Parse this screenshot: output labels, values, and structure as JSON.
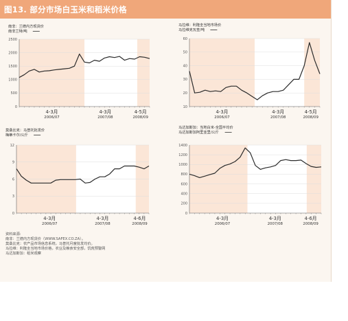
{
  "header": {
    "title": "图13. 部分市场白玉米和稻米价格"
  },
  "sources": {
    "title": "资料来源:",
    "lines": [
      "南非：兰德内方现货价（WWW.SAFEX.CO.ZA）。",
      "莫桑比克：农产品市场信息系统，马普托月度批发均价。",
      "马拉维：利隆圭当地市场价格，农业及粮食安全部，饥荒预警网",
      "马达加斯加：稻米观察"
    ]
  },
  "colors": {
    "line": "#2b2b2b",
    "shade": "#fbe6d7",
    "axis": "#666666",
    "grid": "#dddddd",
    "legend": "#333333"
  },
  "chart_data": [
    {
      "type": "line",
      "title": "南非：兰德内方现货价",
      "ylabel": "南非兰特/吨",
      "ylim": [
        0,
        2500
      ],
      "yticks": [
        "0",
        "500",
        "1000",
        "1500",
        "2000",
        "2500"
      ],
      "xticks": [
        {
          "top": "4-3月",
          "bottom": "2006/07"
        },
        {
          "top": "4-3月",
          "bottom": "2007/08"
        },
        {
          "top": "4-5月",
          "bottom": "2008/09"
        }
      ],
      "grid": true,
      "series": [
        {
          "values": [
            1080,
            1180,
            1320,
            1380,
            1280,
            1320,
            1330,
            1360,
            1380,
            1400,
            1420,
            1500,
            1950,
            1650,
            1620,
            1720,
            1680,
            1800,
            1850,
            1820,
            1860,
            1720,
            1780,
            1760,
            1850,
            1830,
            1780
          ]
        }
      ]
    },
    {
      "type": "line",
      "title": "马拉维：利隆圭当地市场价",
      "ylabel": "马拉维克瓦查/吨",
      "ylim": [
        10,
        60
      ],
      "yticks": [
        "10",
        "20",
        "30",
        "40",
        "50",
        "60"
      ],
      "xticks": [
        {
          "top": "4-3月",
          "bottom": "2006/07"
        },
        {
          "top": "4-3月",
          "bottom": "2007/08"
        },
        {
          "top": "4-5月",
          "bottom": "2008/09"
        }
      ],
      "grid": true,
      "series": [
        {
          "values": [
            36,
            20,
            20.5,
            22,
            21,
            21.5,
            21,
            24,
            25,
            25,
            22,
            20,
            17.5,
            15,
            18,
            20,
            21,
            21,
            22,
            26,
            30,
            30,
            40,
            57,
            44,
            34
          ]
        }
      ]
    },
    {
      "type": "line",
      "title": "莫桑比克：马普托批发价",
      "ylabel": "梅蒂卡尔/公斤",
      "ylim": [
        0,
        12
      ],
      "yticks": [
        "0",
        "3",
        "6",
        "9",
        "12"
      ],
      "xticks": [
        {
          "top": "4-3月",
          "bottom": "2006/07"
        },
        {
          "top": "4-3月",
          "bottom": "2007/08"
        },
        {
          "top": "4-6月",
          "bottom": "2008/09"
        }
      ],
      "grid": true,
      "series": [
        {
          "values": [
            7.8,
            6.5,
            5.8,
            5.3,
            5.3,
            5.3,
            5.3,
            5.3,
            5.8,
            5.9,
            5.9,
            5.9,
            5.9,
            6.0,
            5.3,
            5.4,
            6.0,
            6.4,
            6.4,
            6.9,
            7.8,
            7.8,
            8.3,
            8.3,
            8.3,
            8.1,
            7.8,
            8.3
          ]
        }
      ]
    },
    {
      "type": "line",
      "title": "马达加斯加：当地白米-全国平均价",
      "ylabel": "马达加斯加阿里亚里/公斤",
      "ylim": [
        0,
        1400
      ],
      "yticks": [
        "0",
        "200",
        "400",
        "600",
        "800",
        "1000",
        "1200",
        "1400"
      ],
      "xticks": [
        {
          "top": "4-3月",
          "bottom": "2006/07"
        },
        {
          "top": "4-3月",
          "bottom": "2007/08"
        },
        {
          "top": "4-6月",
          "bottom": "2008/09"
        }
      ],
      "grid": true,
      "series": [
        {
          "values": [
            800,
            770,
            730,
            760,
            790,
            820,
            920,
            980,
            1010,
            1060,
            1150,
            1340,
            1240,
            980,
            900,
            930,
            950,
            980,
            1080,
            1100,
            1080,
            1080,
            1090,
            1020,
            960,
            940,
            950
          ]
        }
      ]
    }
  ]
}
